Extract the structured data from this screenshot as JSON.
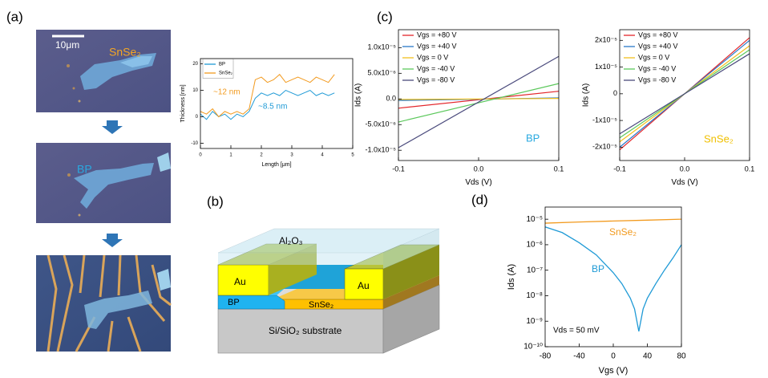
{
  "panel_labels": [
    "(a)",
    "(b)",
    "(c)",
    "(d)"
  ],
  "micrographs": {
    "scale_bar": "10μm",
    "labels": [
      "SnSe₂",
      "BP"
    ]
  },
  "schematic": {
    "labels": [
      "Au",
      "Au",
      "Al₂O₃",
      "BP",
      "SnSe₂",
      "Si/SiO₂ substrate"
    ]
  },
  "chart_data": [
    {
      "type": "line",
      "xlabel": "Length [μm]",
      "ylabel": "Thickness [nm]",
      "xlim": [
        0,
        5
      ],
      "xticks": [
        0,
        1,
        2,
        3,
        4,
        5
      ],
      "ylim": [
        -12,
        22
      ],
      "yticks": [
        -10,
        0,
        10,
        20
      ],
      "legend": "upper left",
      "legend_frame": true,
      "x": [
        0,
        0.2,
        0.4,
        0.6,
        0.8,
        1,
        1.2,
        1.4,
        1.6,
        1.8,
        2,
        2.2,
        2.4,
        2.6,
        2.8,
        3,
        3.2,
        3.4,
        3.6,
        3.8,
        4,
        4.2,
        4.4
      ],
      "series": [
        {
          "name": "BP",
          "color": "#1f9ad6",
          "values": [
            1,
            -1,
            2,
            0,
            1,
            -1,
            1,
            0,
            2,
            7,
            9,
            8,
            9,
            8,
            10,
            9,
            8,
            9,
            10,
            8,
            9,
            8,
            9
          ]
        },
        {
          "name": "SnSe₂",
          "color": "#f29a1e",
          "values": [
            2,
            1,
            3,
            0,
            2,
            1,
            2,
            1,
            3,
            14,
            15,
            13,
            14,
            16,
            13,
            14,
            15,
            14,
            13,
            15,
            14,
            13,
            16
          ]
        }
      ],
      "annotations": [
        {
          "text": "~12 nm",
          "color": "#f29a1e"
        },
        {
          "text": "~8.5 nm",
          "color": "#1f9ad6"
        }
      ]
    },
    {
      "type": "line",
      "xlabel": "Vds (V)",
      "ylabel": "Ids (A)",
      "xlim": [
        -0.1,
        0.1
      ],
      "xticks": [
        -0.1,
        {
          "value": 0,
          "label": "0.0"
        },
        0.1
      ],
      "ylim": [
        -1.2e-05,
        1.35e-05
      ],
      "yticks": [
        {
          "value": -1e-05,
          "label": "-1.0x10⁻⁵"
        },
        {
          "value": -5e-06,
          "label": "-5.0x10⁻⁶"
        },
        {
          "value": 0,
          "label": "0.0"
        },
        {
          "value": 5e-06,
          "label": "5.0x10⁻⁶"
        },
        {
          "value": 1e-05,
          "label": "1.0x10⁻⁵"
        }
      ],
      "legend": "upper left",
      "legend_frame": false,
      "x": [
        -0.1,
        0.1
      ],
      "series": [
        {
          "name": "Vgs = +80 V",
          "color": "#e3262b",
          "values": [
            -1.8e-06,
            1.5e-06
          ]
        },
        {
          "name": "Vgs = +40 V",
          "color": "#2a78c8",
          "values": [
            -3e-07,
            2e-07
          ]
        },
        {
          "name": "Vgs = 0 V",
          "color": "#f2c01e",
          "values": [
            -1e-07,
            1e-07
          ]
        },
        {
          "name": "Vgs = -40 V",
          "color": "#5cc85c",
          "values": [
            -4.5e-06,
            3e-06
          ]
        },
        {
          "name": "Vgs = -80 V",
          "color": "#4a4a7c",
          "values": [
            -9.5e-06,
            8.3e-06
          ]
        }
      ],
      "annotations": [
        {
          "text": "BP",
          "color": "#29a9e0"
        }
      ]
    },
    {
      "type": "line",
      "xlabel": "Vds (V)",
      "ylabel": "Ids (A)",
      "xlim": [
        -0.1,
        0.1
      ],
      "xticks": [
        -0.1,
        {
          "value": 0,
          "label": "0.0"
        },
        0.1
      ],
      "ylim": [
        -2.5e-05,
        2.4e-05
      ],
      "yticks": [
        {
          "value": -2e-05,
          "label": "-2x10⁻⁵"
        },
        {
          "value": -1e-05,
          "label": "-1x10⁻⁵"
        },
        0,
        {
          "value": 1e-05,
          "label": "1x10⁻⁵"
        },
        {
          "value": 2e-05,
          "label": "2x10⁻⁵"
        }
      ],
      "legend": "upper left",
      "legend_frame": false,
      "x": [
        -0.1,
        0.1
      ],
      "series": [
        {
          "name": "Vgs = +80 V",
          "color": "#e3262b",
          "values": [
            -2.1e-05,
            2.1e-05
          ]
        },
        {
          "name": "Vgs = +40 V",
          "color": "#2a78c8",
          "values": [
            -2e-05,
            2e-05
          ]
        },
        {
          "name": "Vgs = 0 V",
          "color": "#f2c01e",
          "values": [
            -1.8e-05,
            1.8e-05
          ]
        },
        {
          "name": "Vgs = -40 V",
          "color": "#5cc85c",
          "values": [
            -1.65e-05,
            1.65e-05
          ]
        },
        {
          "name": "Vgs = -80 V",
          "color": "#4a4a7c",
          "values": [
            -1.5e-05,
            1.5e-05
          ]
        }
      ],
      "annotations": [
        {
          "text": "SnSe₂",
          "color": "#f0c000"
        }
      ]
    },
    {
      "type": "line",
      "xlabel": "Vgs (V)",
      "ylabel": "Ids (A)",
      "log_y": true,
      "xlim": [
        -80,
        80
      ],
      "xticks": [
        -80,
        -40,
        0,
        40,
        80
      ],
      "ylim": [
        1e-10,
        3e-05
      ],
      "yticks": [
        {
          "value": 1e-10,
          "label": "10⁻¹⁰"
        },
        {
          "value": 1e-09,
          "label": "10⁻⁹"
        },
        {
          "value": 1e-08,
          "label": "10⁻⁸"
        },
        {
          "value": 1e-07,
          "label": "10⁻⁷"
        },
        {
          "value": 1e-06,
          "label": "10⁻⁶"
        },
        {
          "value": 1e-05,
          "label": "10⁻⁵"
        }
      ],
      "legend": "beside curves",
      "series": [
        {
          "name": "SnSe₂",
          "color": "#f29a1e",
          "x": [
            -80,
            -40,
            0,
            40,
            80
          ],
          "values": [
            7e-06,
            7.8e-06,
            8.5e-06,
            9.2e-06,
            1e-05
          ]
        },
        {
          "name": "BP",
          "color": "#1f9ad6",
          "x": [
            -80,
            -60,
            -40,
            -20,
            0,
            10,
            20,
            25,
            30,
            35,
            40,
            50,
            60,
            70,
            80
          ],
          "values": [
            5e-06,
            3e-06,
            1.2e-06,
            4e-07,
            8e-08,
            3e-08,
            8e-09,
            3e-09,
            4e-10,
            3e-09,
            8e-09,
            3e-08,
            1e-07,
            3e-07,
            1e-06
          ]
        }
      ],
      "annotations": [
        {
          "text": "Vds = 50 mV",
          "color": "#000000"
        }
      ]
    }
  ]
}
